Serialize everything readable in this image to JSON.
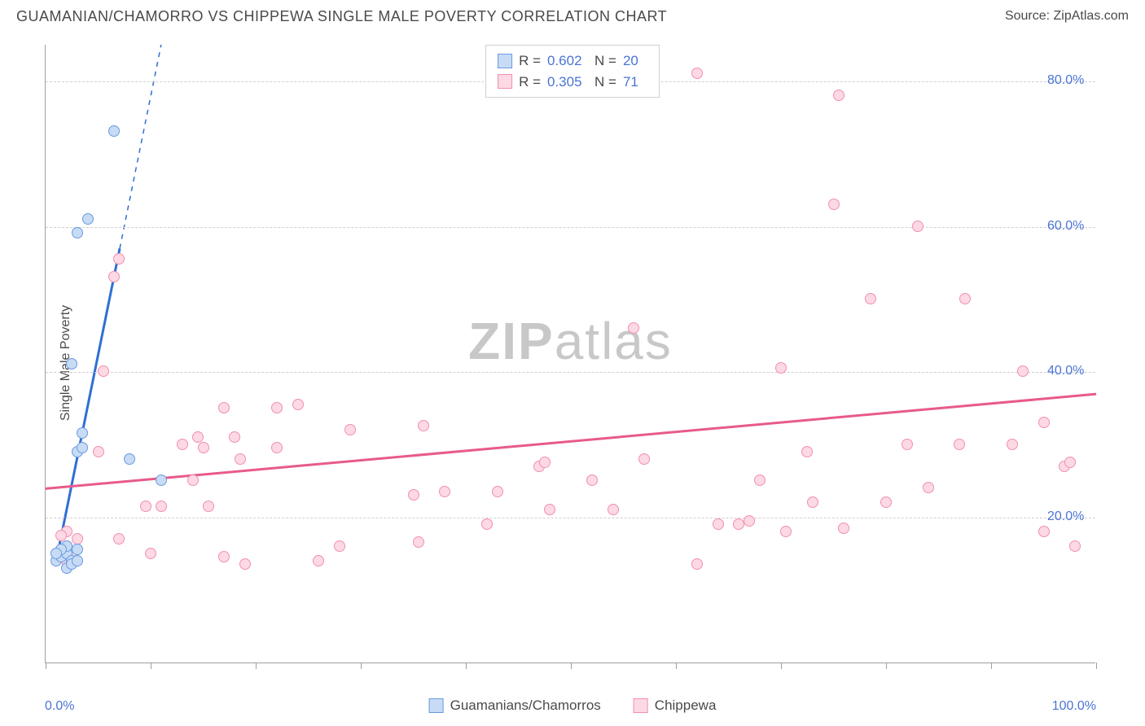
{
  "title": "GUAMANIAN/CHAMORRO VS CHIPPEWA SINGLE MALE POVERTY CORRELATION CHART",
  "source_prefix": "Source: ",
  "source": "ZipAtlas.com",
  "ylabel": "Single Male Poverty",
  "watermark_bold": "ZIP",
  "watermark_light": "atlas",
  "chart": {
    "type": "scatter",
    "xlim": [
      0,
      100
    ],
    "ylim": [
      0,
      85
    ],
    "x_tick_positions": [
      0,
      10,
      20,
      30,
      40,
      50,
      60,
      70,
      80,
      90,
      100
    ],
    "x_axis_labels": [
      {
        "pos": 0,
        "text": "0.0%"
      },
      {
        "pos": 100,
        "text": "100.0%"
      }
    ],
    "y_gridlines": [
      20,
      40,
      60,
      80
    ],
    "y_axis_labels": [
      {
        "pos": 20,
        "text": "20.0%"
      },
      {
        "pos": 40,
        "text": "40.0%"
      },
      {
        "pos": 60,
        "text": "60.0%"
      },
      {
        "pos": 80,
        "text": "80.0%"
      }
    ],
    "background_color": "#ffffff",
    "grid_color": "#d0d0d0",
    "axis_color": "#9aa0a6",
    "tick_label_color": "#4a74d4",
    "label_fontsize": 16,
    "marker_radius": 7
  },
  "series": [
    {
      "name": "Guamanians/Chamorros",
      "fill": "#c7dbf5",
      "stroke": "#6a9ae0",
      "line_color": "#2f6fd4",
      "line_width": 3,
      "line_dash_extend": true,
      "stats": {
        "R": "0.602",
        "N": "20"
      },
      "trend": {
        "x1": 1,
        "y1": 14,
        "x2": 11,
        "y2": 85,
        "solid_y_cap": 57
      },
      "points": [
        {
          "x": 1.0,
          "y": 14.0
        },
        {
          "x": 1.5,
          "y": 14.5
        },
        {
          "x": 2.0,
          "y": 15.0
        },
        {
          "x": 2.0,
          "y": 16.0
        },
        {
          "x": 2.5,
          "y": 14.0
        },
        {
          "x": 3.0,
          "y": 15.5
        },
        {
          "x": 3.0,
          "y": 29.0
        },
        {
          "x": 3.5,
          "y": 29.5
        },
        {
          "x": 3.5,
          "y": 31.5
        },
        {
          "x": 2.5,
          "y": 41.0
        },
        {
          "x": 3.0,
          "y": 59.0
        },
        {
          "x": 4.0,
          "y": 61.0
        },
        {
          "x": 6.5,
          "y": 73.0
        },
        {
          "x": 8.0,
          "y": 28.0
        },
        {
          "x": 11.0,
          "y": 25.0
        },
        {
          "x": 2.0,
          "y": 13.0
        },
        {
          "x": 1.5,
          "y": 15.5
        },
        {
          "x": 2.5,
          "y": 13.5
        },
        {
          "x": 1.0,
          "y": 15.0
        },
        {
          "x": 3.0,
          "y": 14.0
        }
      ]
    },
    {
      "name": "Chippewa",
      "fill": "#fdd9e3",
      "stroke": "#f08fb0",
      "line_color": "#e85a8a",
      "line_width": 3,
      "line_dash_extend": false,
      "stats": {
        "R": "0.305",
        "N": "71"
      },
      "trend": {
        "x1": 0,
        "y1": 24,
        "x2": 100,
        "y2": 37
      },
      "points": [
        {
          "x": 1.5,
          "y": 15.0
        },
        {
          "x": 2.0,
          "y": 16.0
        },
        {
          "x": 2.5,
          "y": 15.0
        },
        {
          "x": 2.0,
          "y": 14.0
        },
        {
          "x": 3.0,
          "y": 17.0
        },
        {
          "x": 2.0,
          "y": 18.0
        },
        {
          "x": 1.5,
          "y": 17.5
        },
        {
          "x": 5.0,
          "y": 29.0
        },
        {
          "x": 5.5,
          "y": 40.0
        },
        {
          "x": 6.5,
          "y": 53.0
        },
        {
          "x": 7.0,
          "y": 55.5
        },
        {
          "x": 7.0,
          "y": 17.0
        },
        {
          "x": 9.5,
          "y": 21.5
        },
        {
          "x": 10.0,
          "y": 15.0
        },
        {
          "x": 11.0,
          "y": 21.5
        },
        {
          "x": 13.0,
          "y": 30.0
        },
        {
          "x": 14.0,
          "y": 25.0
        },
        {
          "x": 14.5,
          "y": 31.0
        },
        {
          "x": 15.0,
          "y": 29.5
        },
        {
          "x": 15.5,
          "y": 21.5
        },
        {
          "x": 17.0,
          "y": 35.0
        },
        {
          "x": 17.0,
          "y": 14.5
        },
        {
          "x": 18.0,
          "y": 31.0
        },
        {
          "x": 18.5,
          "y": 28.0
        },
        {
          "x": 19.0,
          "y": 13.5
        },
        {
          "x": 22.0,
          "y": 35.0
        },
        {
          "x": 22.0,
          "y": 29.5
        },
        {
          "x": 24.0,
          "y": 35.5
        },
        {
          "x": 26.0,
          "y": 14.0
        },
        {
          "x": 28.0,
          "y": 16.0
        },
        {
          "x": 29.0,
          "y": 32.0
        },
        {
          "x": 35.0,
          "y": 23.0
        },
        {
          "x": 35.5,
          "y": 16.5
        },
        {
          "x": 36.0,
          "y": 32.5
        },
        {
          "x": 38.0,
          "y": 23.5
        },
        {
          "x": 42.0,
          "y": 19.0
        },
        {
          "x": 43.0,
          "y": 23.5
        },
        {
          "x": 47.0,
          "y": 27.0
        },
        {
          "x": 47.5,
          "y": 27.5
        },
        {
          "x": 48.0,
          "y": 21.0
        },
        {
          "x": 52.0,
          "y": 25.0
        },
        {
          "x": 54.0,
          "y": 21.0
        },
        {
          "x": 56.0,
          "y": 46.0
        },
        {
          "x": 57.0,
          "y": 28.0
        },
        {
          "x": 62.0,
          "y": 13.5
        },
        {
          "x": 62.0,
          "y": 81.0
        },
        {
          "x": 64.0,
          "y": 19.0
        },
        {
          "x": 66.0,
          "y": 19.0
        },
        {
          "x": 67.0,
          "y": 19.5
        },
        {
          "x": 68.0,
          "y": 25.0
        },
        {
          "x": 70.0,
          "y": 40.5
        },
        {
          "x": 70.5,
          "y": 18.0
        },
        {
          "x": 72.5,
          "y": 29.0
        },
        {
          "x": 73.0,
          "y": 22.0
        },
        {
          "x": 75.0,
          "y": 63.0
        },
        {
          "x": 75.5,
          "y": 78.0
        },
        {
          "x": 76.0,
          "y": 18.5
        },
        {
          "x": 78.5,
          "y": 50.0
        },
        {
          "x": 80.0,
          "y": 22.0
        },
        {
          "x": 82.0,
          "y": 30.0
        },
        {
          "x": 83.0,
          "y": 60.0
        },
        {
          "x": 84.0,
          "y": 24.0
        },
        {
          "x": 87.0,
          "y": 30.0
        },
        {
          "x": 87.5,
          "y": 50.0
        },
        {
          "x": 92.0,
          "y": 30.0
        },
        {
          "x": 93.0,
          "y": 40.0
        },
        {
          "x": 95.0,
          "y": 18.0
        },
        {
          "x": 95.0,
          "y": 33.0
        },
        {
          "x": 97.0,
          "y": 27.0
        },
        {
          "x": 97.5,
          "y": 27.5
        },
        {
          "x": 98.0,
          "y": 16.0
        }
      ]
    }
  ],
  "stats_box_labels": {
    "R": "R =",
    "N": "N ="
  }
}
